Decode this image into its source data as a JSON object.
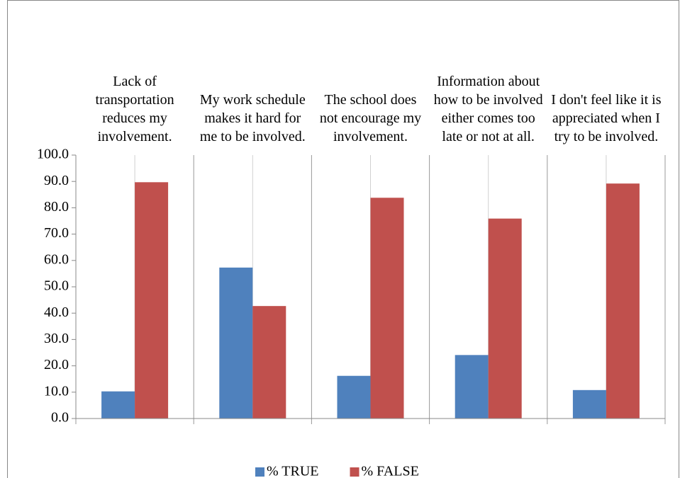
{
  "chart_data": {
    "type": "bar",
    "categories": [
      "Lack of transportation reduces my involvement.",
      "My work schedule makes it hard for me to be involved.",
      "The school does not encourage my involvement.",
      "Information about how to be involved either comes too late or not at all.",
      "I don't feel like it is appreciated when I try to be involved."
    ],
    "series": [
      {
        "name": "% TRUE",
        "color": "#4f81bd",
        "values": [
          10.3,
          57.3,
          16.2,
          24.1,
          10.8
        ]
      },
      {
        "name": "% FALSE",
        "color": "#c0504d",
        "values": [
          89.7,
          42.7,
          83.8,
          75.9,
          89.2
        ]
      }
    ],
    "ylim": [
      0,
      100
    ],
    "yticks": [
      {
        "value": 0,
        "label": "0.0"
      },
      {
        "value": 10,
        "label": "10.0"
      },
      {
        "value": 20,
        "label": "20.0"
      },
      {
        "value": 30,
        "label": "30.0"
      },
      {
        "value": 40,
        "label": "40.0"
      },
      {
        "value": 50,
        "label": "50.0"
      },
      {
        "value": 60,
        "label": "60.0"
      },
      {
        "value": 70,
        "label": "70.0"
      },
      {
        "value": 80,
        "label": "80.0"
      },
      {
        "value": 90,
        "label": "90.0"
      },
      {
        "value": 100,
        "label": "100.0"
      }
    ],
    "legend": "bottom"
  }
}
